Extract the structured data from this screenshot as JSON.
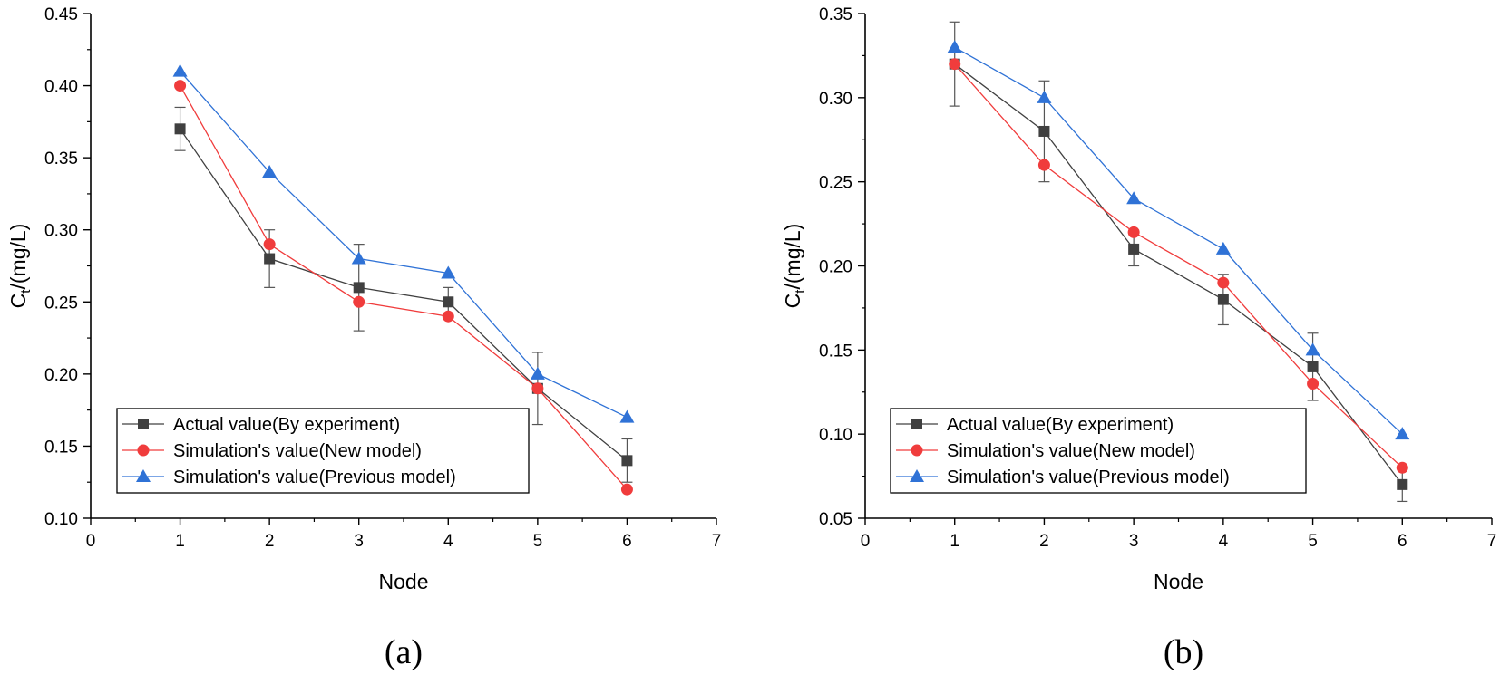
{
  "chart_data": [
    {
      "type": "line",
      "panel_label": "(a)",
      "xlabel": "Node",
      "ylabel_main": "C",
      "ylabel_sub": "t",
      "ylabel_rest": "/(mg/L)",
      "xlim": [
        0,
        7
      ],
      "ylim": [
        0.1,
        0.45
      ],
      "xticks": [
        0,
        1,
        2,
        3,
        4,
        5,
        6,
        7
      ],
      "yticks": [
        0.1,
        0.15,
        0.2,
        0.25,
        0.3,
        0.35,
        0.4,
        0.45
      ],
      "ytick_labels": [
        "0.10",
        "0.15",
        "0.20",
        "0.25",
        "0.30",
        "0.35",
        "0.40",
        "0.45"
      ],
      "grid": false,
      "legend_position": "bottom-left",
      "x": [
        1,
        2,
        3,
        4,
        5,
        6
      ],
      "series": [
        {
          "name": "Actual value(By experiment)",
          "marker": "square",
          "color": "#404040",
          "values": [
            0.37,
            0.28,
            0.26,
            0.25,
            0.19,
            0.14
          ],
          "error": [
            0.015,
            0.02,
            0.03,
            0.01,
            0.025,
            0.015
          ]
        },
        {
          "name": "Simulation's value(New model)",
          "marker": "circle",
          "color": "#f03c3c",
          "values": [
            0.4,
            0.29,
            0.25,
            0.24,
            0.19,
            0.12
          ]
        },
        {
          "name": "Simulation's value(Previous model)",
          "marker": "triangle",
          "color": "#2f72d6",
          "values": [
            0.41,
            0.34,
            0.28,
            0.27,
            0.2,
            0.17
          ]
        }
      ]
    },
    {
      "type": "line",
      "panel_label": "(b)",
      "xlabel": "Node",
      "ylabel_main": "C",
      "ylabel_sub": "t",
      "ylabel_rest": "/(mg/L)",
      "xlim": [
        0,
        7
      ],
      "ylim": [
        0.05,
        0.35
      ],
      "xticks": [
        0,
        1,
        2,
        3,
        4,
        5,
        6,
        7
      ],
      "yticks": [
        0.05,
        0.1,
        0.15,
        0.2,
        0.25,
        0.3,
        0.35
      ],
      "ytick_labels": [
        "0.05",
        "0.10",
        "0.15",
        "0.20",
        "0.25",
        "0.30",
        "0.35"
      ],
      "grid": false,
      "legend_position": "bottom-left",
      "x": [
        1,
        2,
        3,
        4,
        5,
        6
      ],
      "series": [
        {
          "name": "Actual value(By experiment)",
          "marker": "square",
          "color": "#404040",
          "values": [
            0.32,
            0.28,
            0.21,
            0.18,
            0.14,
            0.07
          ],
          "error": [
            0.025,
            0.03,
            0.01,
            0.015,
            0.02,
            0.01
          ]
        },
        {
          "name": "Simulation's value(New model)",
          "marker": "circle",
          "color": "#f03c3c",
          "values": [
            0.32,
            0.26,
            0.22,
            0.19,
            0.13,
            0.08
          ]
        },
        {
          "name": "Simulation's value(Previous model)",
          "marker": "triangle",
          "color": "#2f72d6",
          "values": [
            0.33,
            0.3,
            0.24,
            0.21,
            0.15,
            0.1
          ]
        }
      ]
    }
  ]
}
